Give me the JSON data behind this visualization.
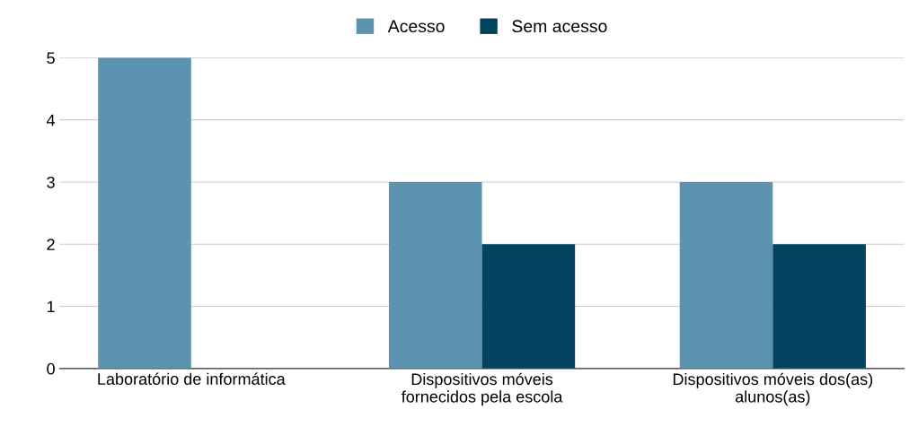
{
  "chart_data": {
    "type": "bar",
    "categories": [
      "Laboratório de informática",
      "Dispositivos móveis\nfornecidos pela escola",
      "Dispositivos móveis dos(as)\nalunos(as)"
    ],
    "series": [
      {
        "name": "Acesso",
        "color": "#5b93b1",
        "values": [
          5,
          3,
          3
        ]
      },
      {
        "name": "Sem acesso",
        "color": "#02445f",
        "values": [
          0,
          2,
          2
        ]
      }
    ],
    "ylim": [
      0,
      5
    ],
    "yticks": [
      0,
      1,
      2,
      3,
      4,
      5
    ],
    "grid": "y",
    "legend": "top"
  }
}
